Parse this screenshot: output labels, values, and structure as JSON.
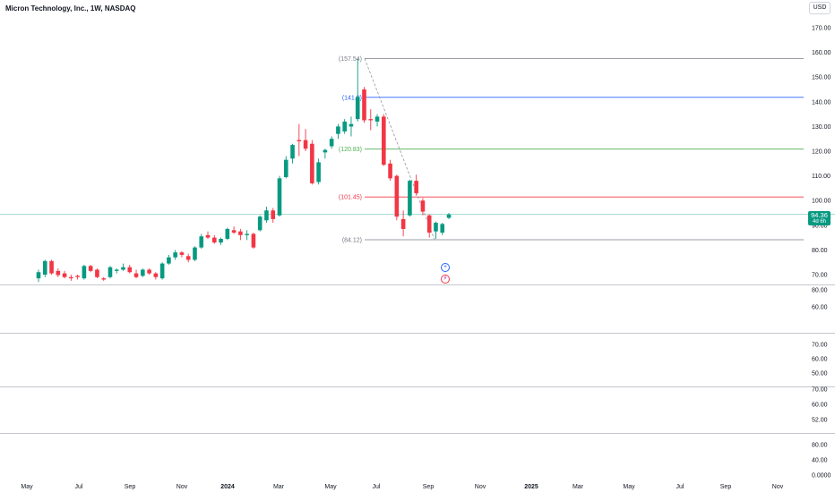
{
  "header": {
    "title": "Micron Technology, Inc., 1W, NASDAQ"
  },
  "currency_button": {
    "label": "USD"
  },
  "price_tag": {
    "price": "94.36",
    "countdown": "4d 6h"
  },
  "colors": {
    "up": "#089981",
    "down": "#f23645",
    "fib_top": "#787b86",
    "fib_1": "#2962ff",
    "fib_2": "#4caf50",
    "fib_3": "#f23645",
    "fib_bottom": "#787b86",
    "current_price_line": "#089981"
  },
  "icons": {
    "add_alert": "plus-circle-icon",
    "flash": "lightning-icon"
  },
  "chart_data": {
    "type": "candlestick",
    "timeframe": "1W",
    "price_axis_ticks": [
      "170.00",
      "160.00",
      "150.00",
      "140.00",
      "130.00",
      "120.00",
      "110.00",
      "100.00",
      "90.00",
      "80.00",
      "70.00"
    ],
    "ylim": [
      67,
      174
    ],
    "time_axis_labels": [
      "May",
      "Jul",
      "Sep",
      "Nov",
      "2024",
      "Mar",
      "May",
      "Jul",
      "Sep",
      "Nov",
      "2025",
      "Mar",
      "May",
      "Jul",
      "Sep",
      "Nov"
    ],
    "fib_levels": [
      {
        "label": "(157.54)",
        "value": 157.54,
        "color": "#787b86"
      },
      {
        "label": "(141.8)",
        "value": 141.8,
        "color": "#2962ff"
      },
      {
        "label": "(120.83)",
        "value": 120.83,
        "color": "#4caf50"
      },
      {
        "label": "(101.45)",
        "value": 101.45,
        "color": "#f23645"
      },
      {
        "label": "(84.12)",
        "value": 84.12,
        "color": "#787b86"
      }
    ],
    "current_price": 94.36,
    "candles": [
      {
        "o": 68.5,
        "h": 72.0,
        "l": 67.0,
        "c": 71.0
      },
      {
        "o": 70.0,
        "h": 76.0,
        "l": 69.0,
        "c": 75.5
      },
      {
        "o": 75.5,
        "h": 76.0,
        "l": 70.0,
        "c": 70.5
      },
      {
        "o": 71.5,
        "h": 72.5,
        "l": 69.0,
        "c": 69.8
      },
      {
        "o": 70.5,
        "h": 71.5,
        "l": 68.5,
        "c": 69.0
      },
      {
        "o": 69.0,
        "h": 70.0,
        "l": 67.5,
        "c": 68.5
      },
      {
        "o": 69.5,
        "h": 70.0,
        "l": 68.0,
        "c": 69.0
      },
      {
        "o": 68.5,
        "h": 74.0,
        "l": 68.0,
        "c": 73.5
      },
      {
        "o": 73.5,
        "h": 74.0,
        "l": 71.0,
        "c": 71.5
      },
      {
        "o": 72.0,
        "h": 72.5,
        "l": 68.5,
        "c": 69.0
      },
      {
        "o": 68.5,
        "h": 69.0,
        "l": 67.5,
        "c": 68.0
      },
      {
        "o": 69.0,
        "h": 73.5,
        "l": 68.5,
        "c": 73.0
      },
      {
        "o": 71.5,
        "h": 72.5,
        "l": 70.5,
        "c": 72.0
      },
      {
        "o": 72.0,
        "h": 74.5,
        "l": 71.5,
        "c": 73.0
      },
      {
        "o": 73.0,
        "h": 74.0,
        "l": 70.5,
        "c": 71.0
      },
      {
        "o": 70.5,
        "h": 72.0,
        "l": 68.5,
        "c": 69.0
      },
      {
        "o": 69.5,
        "h": 72.5,
        "l": 69.0,
        "c": 72.0
      },
      {
        "o": 72.0,
        "h": 72.5,
        "l": 70.0,
        "c": 70.5
      },
      {
        "o": 70.5,
        "h": 71.0,
        "l": 68.0,
        "c": 69.0
      },
      {
        "o": 68.5,
        "h": 75.0,
        "l": 68.0,
        "c": 74.5
      },
      {
        "o": 74.5,
        "h": 78.0,
        "l": 74.0,
        "c": 77.0
      },
      {
        "o": 77.0,
        "h": 80.0,
        "l": 76.0,
        "c": 79.0
      },
      {
        "o": 79.0,
        "h": 79.5,
        "l": 77.0,
        "c": 78.0
      },
      {
        "o": 77.5,
        "h": 78.5,
        "l": 75.0,
        "c": 76.0
      },
      {
        "o": 76.0,
        "h": 81.5,
        "l": 75.5,
        "c": 81.0
      },
      {
        "o": 81.0,
        "h": 86.5,
        "l": 80.5,
        "c": 85.5
      },
      {
        "o": 86.0,
        "h": 87.5,
        "l": 84.5,
        "c": 85.0
      },
      {
        "o": 85.0,
        "h": 86.0,
        "l": 82.5,
        "c": 83.0
      },
      {
        "o": 83.0,
        "h": 85.0,
        "l": 82.0,
        "c": 84.5
      },
      {
        "o": 84.5,
        "h": 89.0,
        "l": 84.0,
        "c": 88.5
      },
      {
        "o": 88.0,
        "h": 89.5,
        "l": 86.5,
        "c": 87.0
      },
      {
        "o": 87.5,
        "h": 88.5,
        "l": 84.0,
        "c": 86.0
      },
      {
        "o": 86.0,
        "h": 88.0,
        "l": 84.0,
        "c": 86.5
      },
      {
        "o": 86.5,
        "h": 87.0,
        "l": 80.5,
        "c": 81.0
      },
      {
        "o": 88.0,
        "h": 94.0,
        "l": 87.5,
        "c": 93.5
      },
      {
        "o": 92.0,
        "h": 97.5,
        "l": 91.0,
        "c": 96.0
      },
      {
        "o": 96.0,
        "h": 97.0,
        "l": 91.0,
        "c": 92.5
      },
      {
        "o": 94.0,
        "h": 110.0,
        "l": 93.5,
        "c": 109.0
      },
      {
        "o": 109.5,
        "h": 118.0,
        "l": 109.0,
        "c": 116.5
      },
      {
        "o": 117.0,
        "h": 123.0,
        "l": 115.0,
        "c": 122.5
      },
      {
        "o": 124.5,
        "h": 131.0,
        "l": 118.0,
        "c": 124.0
      },
      {
        "o": 124.5,
        "h": 129.0,
        "l": 120.0,
        "c": 121.0
      },
      {
        "o": 123.0,
        "h": 124.5,
        "l": 106.5,
        "c": 107.0
      },
      {
        "o": 107.5,
        "h": 117.0,
        "l": 106.5,
        "c": 115.5
      },
      {
        "o": 119.5,
        "h": 121.0,
        "l": 117.0,
        "c": 120.5
      },
      {
        "o": 122.0,
        "h": 126.0,
        "l": 121.0,
        "c": 125.0
      },
      {
        "o": 127.0,
        "h": 131.0,
        "l": 125.0,
        "c": 130.0
      },
      {
        "o": 128.0,
        "h": 133.0,
        "l": 127.0,
        "c": 132.0
      },
      {
        "o": 130.0,
        "h": 134.0,
        "l": 126.0,
        "c": 131.0
      },
      {
        "o": 133.0,
        "h": 157.5,
        "l": 132.0,
        "c": 142.0
      },
      {
        "o": 145.0,
        "h": 146.0,
        "l": 131.5,
        "c": 132.5
      },
      {
        "o": 133.0,
        "h": 137.0,
        "l": 128.5,
        "c": 132.5
      },
      {
        "o": 132.0,
        "h": 135.0,
        "l": 130.0,
        "c": 134.0
      },
      {
        "o": 134.0,
        "h": 135.0,
        "l": 114.0,
        "c": 114.5
      },
      {
        "o": 115.0,
        "h": 116.5,
        "l": 108.0,
        "c": 109.0
      },
      {
        "o": 110.0,
        "h": 110.5,
        "l": 92.0,
        "c": 93.5
      },
      {
        "o": 92.5,
        "h": 96.0,
        "l": 85.5,
        "c": 88.5
      },
      {
        "o": 94.0,
        "h": 108.5,
        "l": 93.5,
        "c": 108.0
      },
      {
        "o": 108.0,
        "h": 110.5,
        "l": 102.0,
        "c": 103.0
      },
      {
        "o": 100.0,
        "h": 101.0,
        "l": 94.0,
        "c": 95.5
      },
      {
        "o": 94.0,
        "h": 94.5,
        "l": 85.0,
        "c": 87.0
      },
      {
        "o": 87.5,
        "h": 91.5,
        "l": 84.5,
        "c": 91.0
      },
      {
        "o": 87.0,
        "h": 91.0,
        "l": 86.0,
        "c": 90.5
      },
      {
        "o": 93.0,
        "h": 95.0,
        "l": 92.5,
        "c": 94.4
      }
    ],
    "lower_panes": [
      {
        "ticks": [
          "80.00",
          "60.00"
        ]
      },
      {
        "ticks": [
          "70.00",
          "60.00",
          "50.00"
        ]
      },
      {
        "ticks": [
          "70.00",
          "60.00",
          "52.00"
        ]
      },
      {
        "ticks": [
          "80.00",
          "40.00",
          "0.0000"
        ]
      }
    ]
  }
}
